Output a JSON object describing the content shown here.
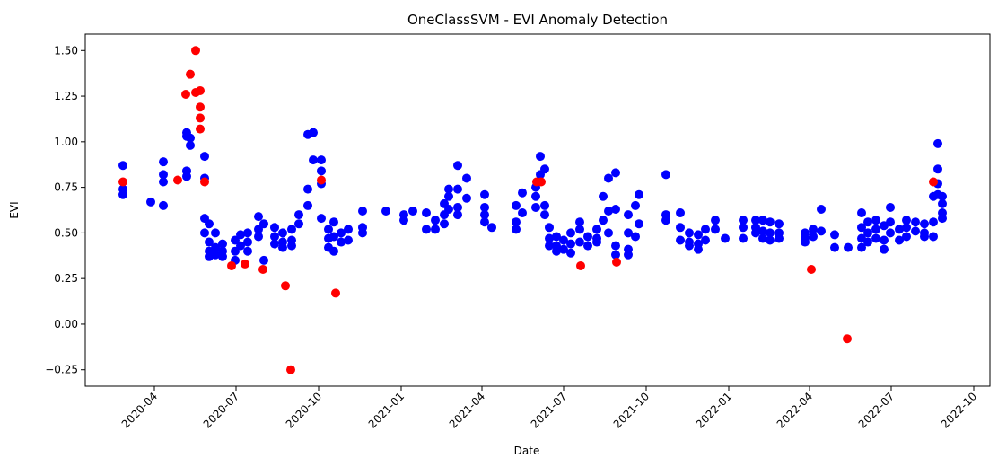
{
  "chart_data": {
    "type": "scatter",
    "title": "OneClassSVM - EVI Anomaly Detection",
    "x_label": "Date",
    "y_label": "EVI",
    "xlim": [
      18276,
      19284
    ],
    "ylim": [
      -0.34,
      1.59
    ],
    "xticks": [
      {
        "value": 18353,
        "label": "2020-04"
      },
      {
        "value": 18444,
        "label": "2020-07"
      },
      {
        "value": 18536,
        "label": "2020-10"
      },
      {
        "value": 18628,
        "label": "2021-01"
      },
      {
        "value": 18718,
        "label": "2021-04"
      },
      {
        "value": 18809,
        "label": "2021-07"
      },
      {
        "value": 18901,
        "label": "2021-10"
      },
      {
        "value": 18993,
        "label": "2022-01"
      },
      {
        "value": 19083,
        "label": "2022-04"
      },
      {
        "value": 19174,
        "label": "2022-07"
      },
      {
        "value": 19266,
        "label": "2022-10"
      }
    ],
    "yticks": [
      {
        "value": -0.25,
        "label": "−0.25"
      },
      {
        "value": 0,
        "label": "0.00"
      },
      {
        "value": 0.25,
        "label": "0.25"
      },
      {
        "value": 0.5,
        "label": "0.50"
      },
      {
        "value": 0.75,
        "label": "0.75"
      },
      {
        "value": 1,
        "label": "1.00"
      },
      {
        "value": 1.25,
        "label": "1.25"
      },
      {
        "value": 1.5,
        "label": "1.50"
      }
    ],
    "series": [
      {
        "color": "#0000ff",
        "x": [
          18318,
          18318,
          18318,
          18349,
          18363,
          18363,
          18363,
          18363,
          18389,
          18389,
          18389,
          18389,
          18393,
          18393,
          18409,
          18409,
          18409,
          18409,
          18414,
          18414,
          18414,
          18414,
          18421,
          18421,
          18421,
          18429,
          18429,
          18429,
          18443,
          18443,
          18443,
          18449,
          18449,
          18457,
          18457,
          18457,
          18469,
          18469,
          18469,
          18475,
          18475,
          18487,
          18487,
          18487,
          18496,
          18496,
          18496,
          18506,
          18506,
          18506,
          18514,
          18514,
          18524,
          18524,
          18524,
          18530,
          18530,
          18539,
          18539,
          18539,
          18539,
          18547,
          18547,
          18547,
          18553,
          18553,
          18553,
          18561,
          18561,
          18569,
          18569,
          18585,
          18585,
          18585,
          18611,
          18631,
          18631,
          18641,
          18656,
          18656,
          18666,
          18666,
          18676,
          18676,
          18676,
          18681,
          18681,
          18681,
          18691,
          18691,
          18691,
          18691,
          18701,
          18701,
          18721,
          18721,
          18721,
          18721,
          18729,
          18756,
          18756,
          18756,
          18763,
          18763,
          18778,
          18778,
          18778,
          18783,
          18783,
          18788,
          18788,
          18788,
          18793,
          18793,
          18793,
          18801,
          18801,
          18801,
          18809,
          18809,
          18817,
          18817,
          18817,
          18827,
          18827,
          18827,
          18836,
          18836,
          18846,
          18846,
          18846,
          18853,
          18853,
          18859,
          18859,
          18859,
          18867,
          18867,
          18867,
          18867,
          18881,
          18881,
          18881,
          18881,
          18889,
          18889,
          18893,
          18893,
          18923,
          18923,
          18923,
          18939,
          18939,
          18939,
          18949,
          18949,
          18949,
          18959,
          18959,
          18959,
          18967,
          18967,
          18978,
          18978,
          18989,
          19009,
          19009,
          19009,
          19023,
          19023,
          19023,
          19031,
          19031,
          19031,
          19039,
          19039,
          19039,
          19049,
          19049,
          19049,
          19078,
          19078,
          19078,
          19087,
          19087,
          19096,
          19096,
          19111,
          19111,
          19126,
          19141,
          19141,
          19141,
          19141,
          19148,
          19148,
          19148,
          19157,
          19157,
          19157,
          19166,
          19166,
          19166,
          19173,
          19173,
          19173,
          19183,
          19183,
          19191,
          19191,
          19191,
          19201,
          19201,
          19211,
          19211,
          19211,
          19221,
          19221,
          19221,
          19226,
          19226,
          19226,
          19226,
          19231,
          19231,
          19231,
          19231
        ],
        "values": [
          0.87,
          0.74,
          0.71,
          0.67,
          0.89,
          0.82,
          0.78,
          0.65,
          0.84,
          0.81,
          1.05,
          1.03,
          0.98,
          1.02,
          0.92,
          0.8,
          0.58,
          0.5,
          0.45,
          0.4,
          0.37,
          0.55,
          0.42,
          0.38,
          0.5,
          0.44,
          0.4,
          0.37,
          0.46,
          0.4,
          0.35,
          0.49,
          0.43,
          0.5,
          0.45,
          0.4,
          0.52,
          0.59,
          0.48,
          0.35,
          0.55,
          0.53,
          0.48,
          0.44,
          0.5,
          0.45,
          0.42,
          0.52,
          0.46,
          0.43,
          0.6,
          0.55,
          1.04,
          0.74,
          0.65,
          1.05,
          0.9,
          0.9,
          0.84,
          0.77,
          0.58,
          0.52,
          0.47,
          0.42,
          0.56,
          0.48,
          0.4,
          0.5,
          0.45,
          0.52,
          0.46,
          0.62,
          0.53,
          0.5,
          0.62,
          0.6,
          0.57,
          0.62,
          0.61,
          0.52,
          0.57,
          0.52,
          0.6,
          0.66,
          0.55,
          0.74,
          0.7,
          0.63,
          0.87,
          0.74,
          0.64,
          0.6,
          0.8,
          0.69,
          0.71,
          0.64,
          0.6,
          0.56,
          0.53,
          0.65,
          0.56,
          0.52,
          0.72,
          0.61,
          0.75,
          0.7,
          0.64,
          0.92,
          0.82,
          0.85,
          0.65,
          0.6,
          0.53,
          0.47,
          0.43,
          0.48,
          0.43,
          0.4,
          0.46,
          0.41,
          0.5,
          0.44,
          0.39,
          0.56,
          0.52,
          0.45,
          0.48,
          0.43,
          0.52,
          0.47,
          0.45,
          0.7,
          0.57,
          0.8,
          0.62,
          0.5,
          0.83,
          0.63,
          0.43,
          0.38,
          0.6,
          0.5,
          0.41,
          0.38,
          0.65,
          0.48,
          0.71,
          0.55,
          0.82,
          0.6,
          0.57,
          0.61,
          0.53,
          0.46,
          0.5,
          0.45,
          0.43,
          0.49,
          0.44,
          0.41,
          0.52,
          0.46,
          0.57,
          0.52,
          0.47,
          0.57,
          0.53,
          0.47,
          0.57,
          0.53,
          0.5,
          0.57,
          0.51,
          0.47,
          0.56,
          0.5,
          0.46,
          0.55,
          0.5,
          0.47,
          0.5,
          0.47,
          0.45,
          0.52,
          0.48,
          0.63,
          0.51,
          0.49,
          0.42,
          0.42,
          0.61,
          0.53,
          0.47,
          0.42,
          0.56,
          0.5,
          0.45,
          0.57,
          0.52,
          0.47,
          0.54,
          0.46,
          0.41,
          0.64,
          0.56,
          0.5,
          0.52,
          0.46,
          0.57,
          0.53,
          0.48,
          0.56,
          0.51,
          0.55,
          0.5,
          0.48,
          0.7,
          0.56,
          0.48,
          0.99,
          0.85,
          0.77,
          0.71,
          0.7,
          0.66,
          0.61,
          0.58
        ]
      },
      {
        "color": "#ff0000",
        "x": [
          18318,
          18379,
          18388,
          18393,
          18399,
          18399,
          18404,
          18404,
          18404,
          18404,
          18409,
          18439,
          18454,
          18474,
          18499,
          18505,
          18539,
          18555,
          18779,
          18784,
          18828,
          18868,
          19085,
          19125,
          19221
        ],
        "values": [
          0.78,
          0.79,
          1.26,
          1.37,
          1.5,
          1.27,
          1.28,
          1.19,
          1.13,
          1.07,
          0.78,
          0.32,
          0.33,
          0.3,
          0.21,
          -0.25,
          0.79,
          0.17,
          0.78,
          0.78,
          0.32,
          0.34,
          0.3,
          -0.08,
          0.78
        ]
      }
    ]
  }
}
